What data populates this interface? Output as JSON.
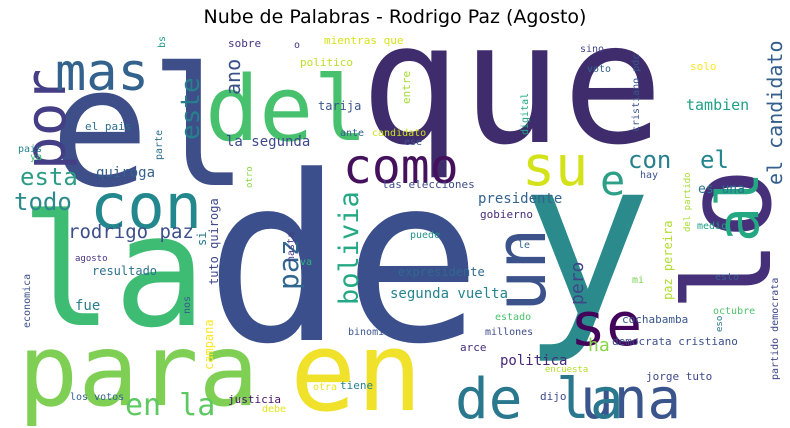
{
  "chart_data": {
    "type": "wordcloud",
    "title": "Nube de Palabras - Rodrigo Paz (Agosto)",
    "words": [
      {
        "text": "que",
        "color": "#3f2c6d"
      },
      {
        "text": "el",
        "color": "#3d4e88"
      },
      {
        "text": "de",
        "color": "#3a4f8c"
      },
      {
        "text": "y",
        "color": "#2a8a8c"
      },
      {
        "text": "la",
        "color": "#3fbc73"
      },
      {
        "text": "en",
        "color": "#f0e22a"
      },
      {
        "text": "para",
        "color": "#7fcf55"
      },
      {
        "text": "lo",
        "color": "#46307a"
      },
      {
        "text": "del",
        "color": "#48c16e"
      },
      {
        "text": "con",
        "color": "#23888e"
      },
      {
        "text": "por",
        "color": "#433e85"
      },
      {
        "text": "mas",
        "color": "#33628d"
      },
      {
        "text": "un",
        "color": "#3b528b"
      },
      {
        "text": "su",
        "color": "#d4e21a"
      },
      {
        "text": "como",
        "color": "#45115d"
      },
      {
        "text": "se",
        "color": "#44035a"
      },
      {
        "text": "al",
        "color": "#23a883"
      },
      {
        "text": "e",
        "color": "#2c9f87"
      },
      {
        "text": "una",
        "color": "#3a548c"
      },
      {
        "text": "de la",
        "color": "#2a788e"
      },
      {
        "text": "la una",
        "color": "#2a788e"
      },
      {
        "text": "en la",
        "color": "#5ec962"
      },
      {
        "text": "bolivia",
        "color": "#25a884"
      },
      {
        "text": "paz",
        "color": "#31678e"
      },
      {
        "text": "el candidato",
        "color": "#345f8d"
      },
      {
        "text": "este",
        "color": "#277f8e"
      },
      {
        "text": "esta",
        "color": "#2d9c86"
      },
      {
        "text": "todo",
        "color": "#2c8a8c"
      },
      {
        "text": "con",
        "color": "#27808e"
      },
      {
        "text": "el",
        "color": "#24868e"
      },
      {
        "text": "rodrigo paz",
        "color": "#3c4f8a"
      },
      {
        "text": "ano",
        "color": "#3b5189"
      },
      {
        "text": "tambien",
        "color": "#1fa187"
      },
      {
        "text": "pero",
        "color": "#414487"
      },
      {
        "text": "quiroga",
        "color": "#36628d"
      },
      {
        "text": "la segunda",
        "color": "#3e4989"
      },
      {
        "text": "segunda vuelta",
        "color": "#25848e"
      },
      {
        "text": "paz pereira",
        "color": "#b2dd2d"
      },
      {
        "text": "presidente",
        "color": "#33638d"
      },
      {
        "text": "ha",
        "color": "#88d547"
      },
      {
        "text": "fue",
        "color": "#2a7d8e"
      },
      {
        "text": "politica",
        "color": "#482878"
      },
      {
        "text": "resultado",
        "color": "#2c728e"
      },
      {
        "text": "expresidente",
        "color": "#31688e"
      },
      {
        "text": "las elecciones",
        "color": "#3e4c8a"
      },
      {
        "text": "gobierno",
        "color": "#472d7b"
      },
      {
        "text": "es una",
        "color": "#2b758e"
      },
      {
        "text": "tarija",
        "color": "#3a548c"
      },
      {
        "text": "mientras que",
        "color": "#d8e219"
      },
      {
        "text": "sobre",
        "color": "#46337f"
      },
      {
        "text": "politico",
        "color": "#bddf26"
      },
      {
        "text": "entre",
        "color": "#a5db36"
      },
      {
        "text": "candidato",
        "color": "#cde11d"
      },
      {
        "text": "ante",
        "color": "#355e8d"
      },
      {
        "text": "ese",
        "color": "#3b518b"
      },
      {
        "text": "otro",
        "color": "#8bd646"
      },
      {
        "text": "tuto quiroga",
        "color": "#3f4a8a"
      },
      {
        "text": "si",
        "color": "#2a788e"
      },
      {
        "text": "hasta",
        "color": "#433d84"
      },
      {
        "text": "va",
        "color": "#2fb47c"
      },
      {
        "text": "puede",
        "color": "#21918c"
      },
      {
        "text": "le",
        "color": "#33638d"
      },
      {
        "text": "digital",
        "color": "#22a884"
      },
      {
        "text": "sino",
        "color": "#414487"
      },
      {
        "text": "voto",
        "color": "#33638d"
      },
      {
        "text": "solo",
        "color": "#fde725"
      },
      {
        "text": "cristiano pdc",
        "color": "#39568c"
      },
      {
        "text": "hay",
        "color": "#39558c"
      },
      {
        "text": "del partido",
        "color": "#a8db34"
      },
      {
        "text": "medio",
        "color": "#1fa088"
      },
      {
        "text": "mi",
        "color": "#7ad151"
      },
      {
        "text": "esto",
        "color": "#355f8d"
      },
      {
        "text": "el pais",
        "color": "#2d708e"
      },
      {
        "text": "pais",
        "color": "#25848e"
      },
      {
        "text": "ya",
        "color": "#3dbc74"
      },
      {
        "text": "bs",
        "color": "#1f9a8a"
      },
      {
        "text": "o",
        "color": "#453781"
      },
      {
        "text": "parte",
        "color": "#2e6f8e"
      },
      {
        "text": "agosto",
        "color": "#46327e"
      },
      {
        "text": "economica",
        "color": "#3b528b"
      },
      {
        "text": "nos",
        "color": "#38598c"
      },
      {
        "text": "campana",
        "color": "#fbe723"
      },
      {
        "text": "binomio",
        "color": "#39568c"
      },
      {
        "text": "millones",
        "color": "#3e4a89"
      },
      {
        "text": "estado",
        "color": "#4ac16d"
      },
      {
        "text": "arce",
        "color": "#472d7b"
      },
      {
        "text": "encuesta",
        "color": "#b5de2b"
      },
      {
        "text": "cochabamba",
        "color": "#39568c"
      },
      {
        "text": "octubre",
        "color": "#4ec36b"
      },
      {
        "text": "democrata cristiano",
        "color": "#3b518b"
      },
      {
        "text": "eso",
        "color": "#2b748e"
      },
      {
        "text": "partido democrata",
        "color": "#3f4788"
      },
      {
        "text": "jorge tuto",
        "color": "#3e4989"
      },
      {
        "text": "tiene",
        "color": "#26828e"
      },
      {
        "text": "otra",
        "color": "#eee51c"
      },
      {
        "text": "dijo",
        "color": "#3e4a89"
      },
      {
        "text": "justicia",
        "color": "#471365"
      },
      {
        "text": "debe",
        "color": "#e5e419"
      },
      {
        "text": "los votos",
        "color": "#33638d"
      }
    ]
  }
}
